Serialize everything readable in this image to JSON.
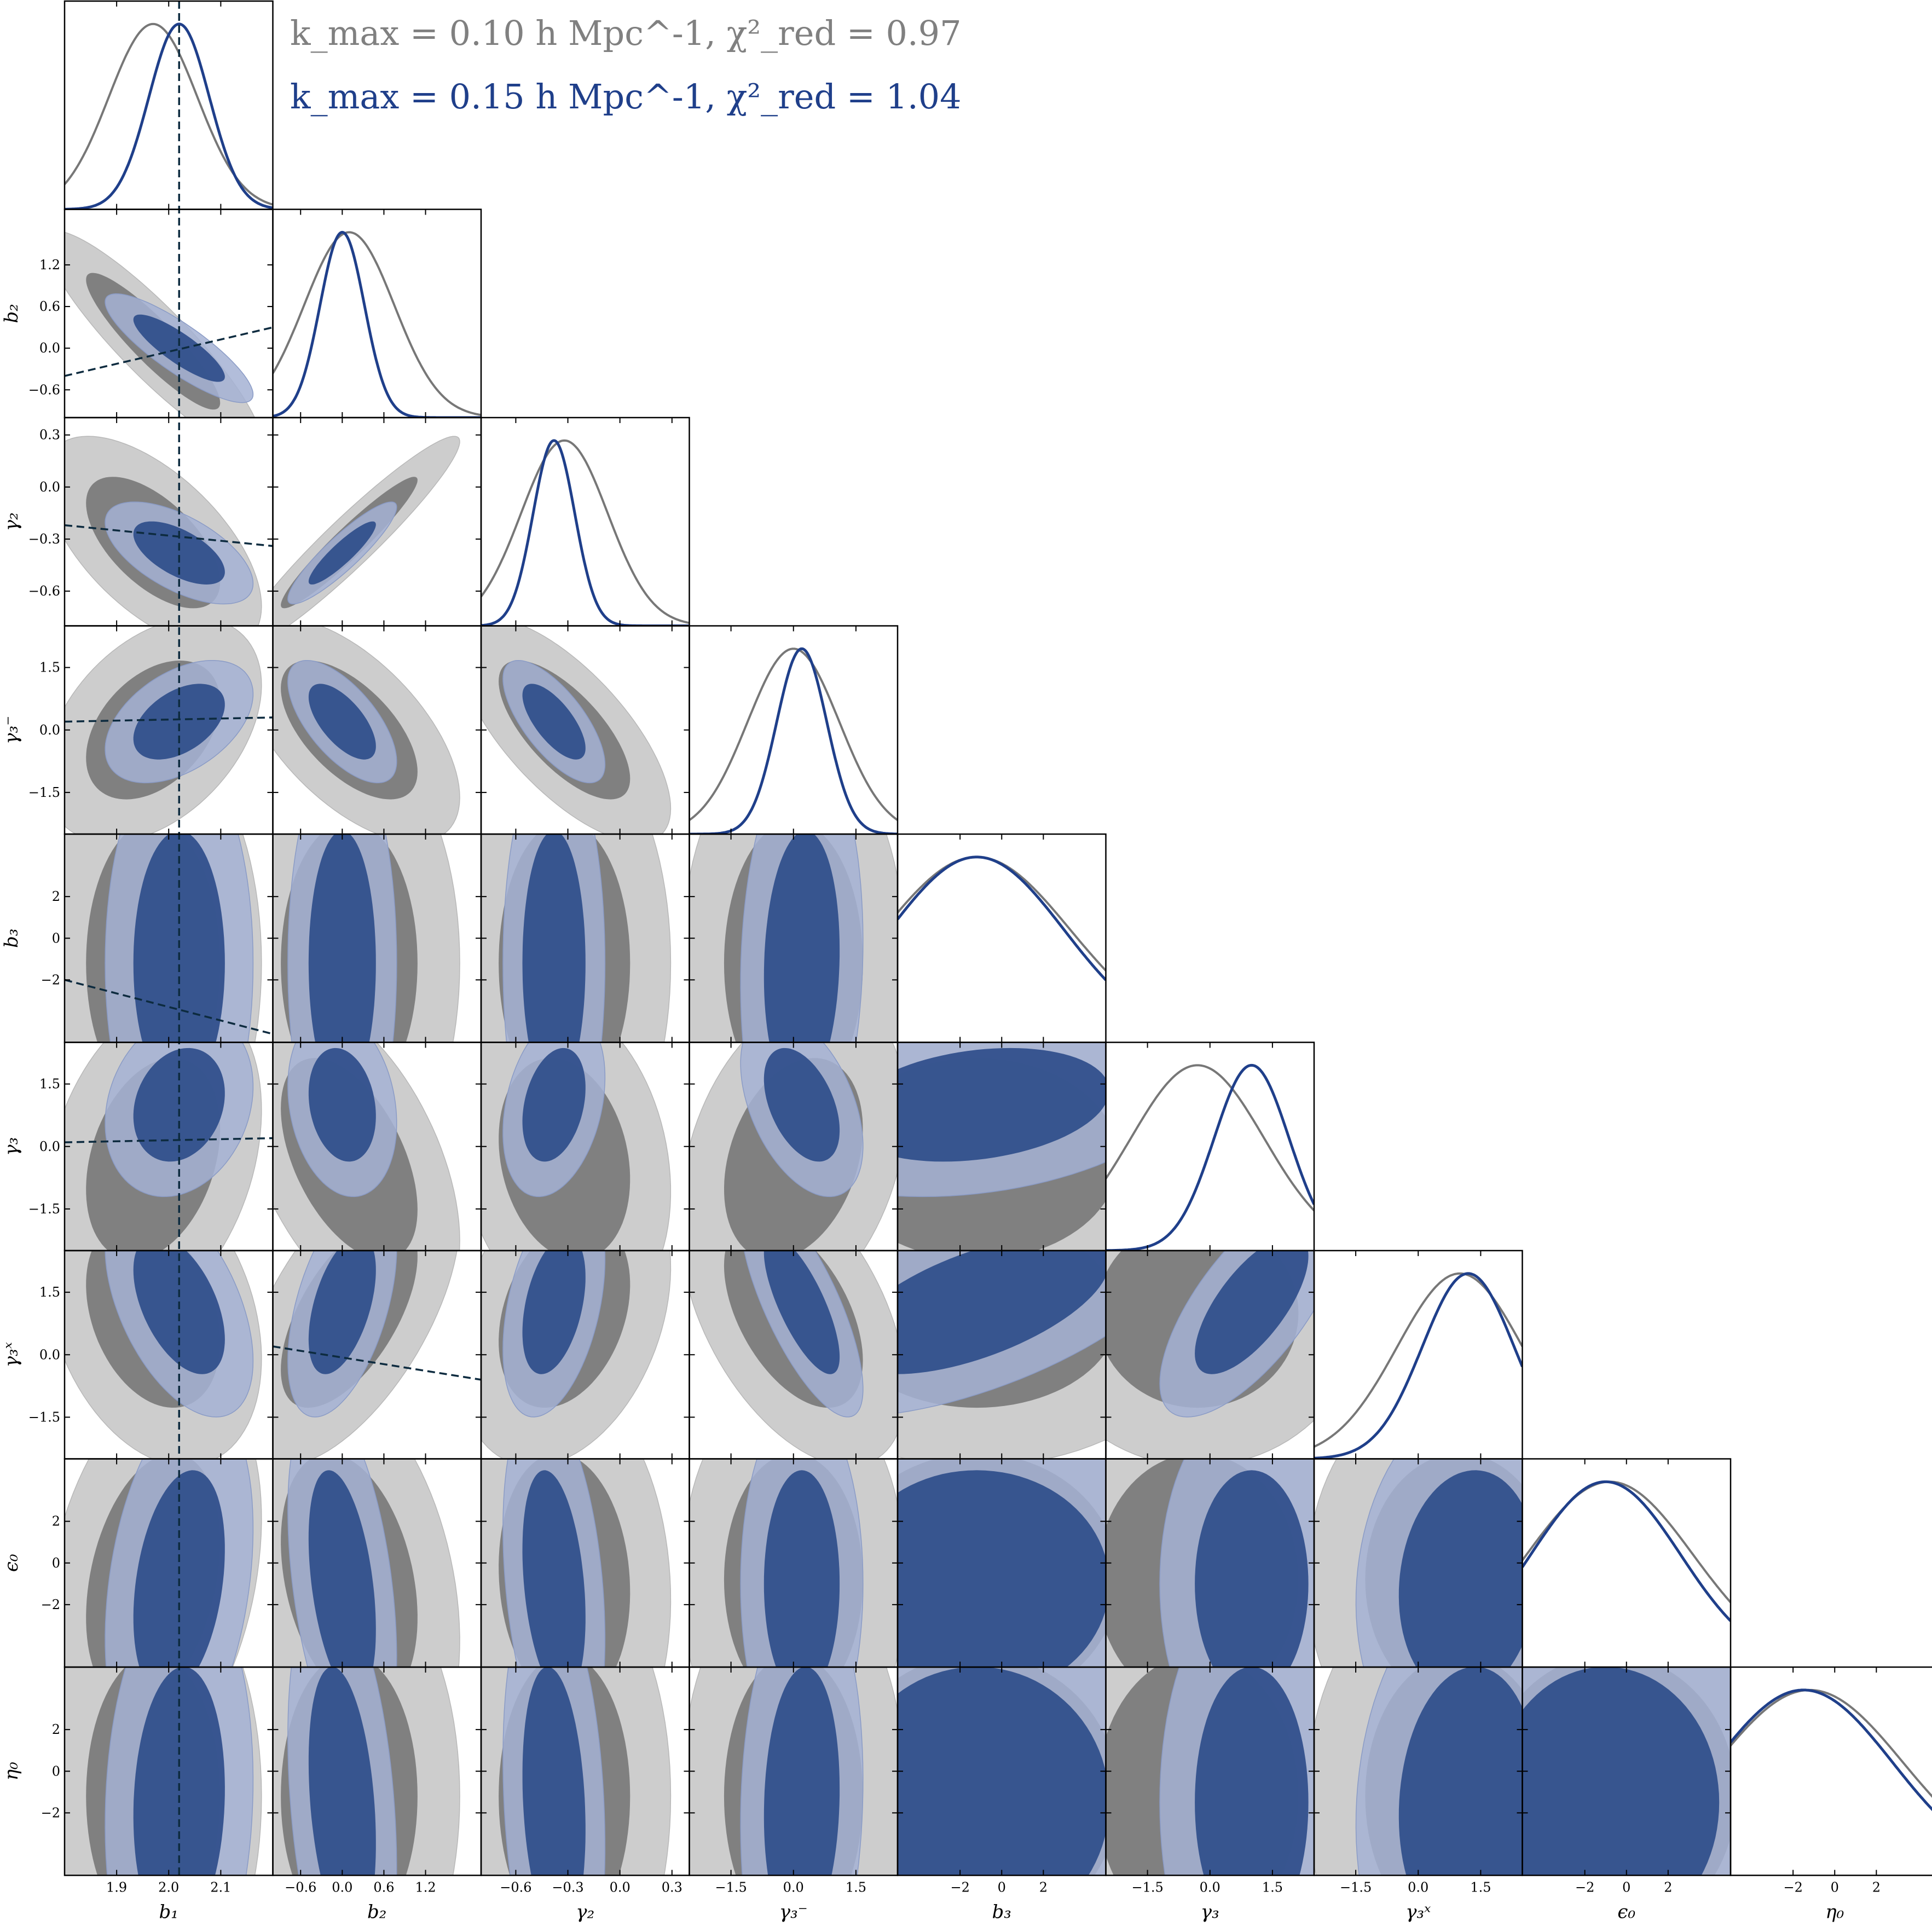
{
  "chart_data": {
    "type": "corner",
    "legend": [
      {
        "label": "k_max = 0.10 h Mpc^-1, χ²_red = 0.97",
        "color": "#808080"
      },
      {
        "label": "k_max = 0.15 h Mpc^-1, χ²_red = 1.04",
        "color": "#1f3f8a"
      }
    ],
    "parameters": [
      {
        "name": "b1",
        "label": "b₁",
        "range": [
          1.8,
          2.2
        ],
        "ticks": [
          1.9,
          2.0,
          2.1
        ],
        "tick_labels": [
          "1.9",
          "2.0",
          "2.1"
        ],
        "mean": [
          1.97,
          2.02
        ],
        "sd": [
          0.085,
          0.058
        ],
        "truth": 2.02
      },
      {
        "name": "b2",
        "label": "b₂",
        "range": [
          -1.0,
          2.0
        ],
        "ticks": [
          -0.6,
          0.0,
          0.6,
          1.2
        ],
        "tick_labels": [
          "−0.6",
          "0.0",
          "0.6",
          "1.2"
        ],
        "mean": [
          0.1,
          0.0
        ],
        "sd": [
          0.65,
          0.32
        ]
      },
      {
        "name": "gamma2",
        "label": "γ₂",
        "range": [
          -0.8,
          0.4
        ],
        "ticks": [
          -0.6,
          -0.3,
          0.0,
          0.3
        ],
        "tick_labels": [
          "−0.6",
          "−0.3",
          "0.0",
          "0.3"
        ],
        "mean": [
          -0.32,
          -0.38
        ],
        "sd": [
          0.25,
          0.12
        ]
      },
      {
        "name": "gamma3m",
        "label": "γ₃⁻",
        "range": [
          -2.5,
          2.5
        ],
        "ticks": [
          -1.5,
          0.0,
          1.5
        ],
        "tick_labels": [
          "−1.5",
          "0.0",
          "1.5"
        ],
        "mean": [
          0.0,
          0.2
        ],
        "sd": [
          1.1,
          0.6
        ]
      },
      {
        "name": "b3",
        "label": "b₃",
        "range": [
          -5.0,
          5.0
        ],
        "ticks": [
          -2,
          0,
          2
        ],
        "tick_labels": [
          "−2",
          "0",
          "2"
        ],
        "mean": [
          -1.2,
          -1.2
        ],
        "sd": [
          4.5,
          4.2
        ]
      },
      {
        "name": "gamma3",
        "label": "γ₃",
        "range": [
          -2.5,
          2.5
        ],
        "ticks": [
          -1.5,
          0.0,
          1.5
        ],
        "tick_labels": [
          "−1.5",
          "0.0",
          "1.5"
        ],
        "mean": [
          -0.3,
          1.0
        ],
        "sd": [
          1.6,
          0.9
        ]
      },
      {
        "name": "gamma3x",
        "label": "γ₃ˣ",
        "range": [
          -2.5,
          2.5
        ],
        "ticks": [
          -1.5,
          0.0,
          1.5
        ],
        "tick_labels": [
          "−1.5",
          "0.0",
          "1.5"
        ],
        "mean": [
          1.0,
          1.2
        ],
        "sd": [
          1.5,
          1.1
        ]
      },
      {
        "name": "epsilon0",
        "label": "ϵ₀",
        "range": [
          -5.0,
          5.0
        ],
        "ticks": [
          -2,
          0,
          2
        ],
        "tick_labels": [
          "−2",
          "0",
          "2"
        ],
        "mean": [
          -0.8,
          -1.0
        ],
        "sd": [
          4.0,
          3.6
        ]
      },
      {
        "name": "eta0",
        "label": "η₀",
        "range": [
          -5.0,
          5.0
        ],
        "ticks": [
          -2,
          0,
          2
        ],
        "tick_labels": [
          "−2",
          "0",
          "2"
        ],
        "mean": [
          -1.2,
          -1.5
        ],
        "sd": [
          4.5,
          4.3
        ]
      }
    ],
    "correlations": {
      "grey": [
        [
          1,
          -0.9,
          -0.6,
          0.4,
          0.0,
          0.3,
          -0.3,
          0.3,
          0.0
        ],
        [
          -0.9,
          1,
          0.95,
          -0.6,
          0.0,
          -0.5,
          0.6,
          -0.3,
          0.0
        ],
        [
          -0.6,
          0.95,
          1,
          -0.7,
          0.0,
          -0.2,
          0.3,
          -0.1,
          0.0
        ],
        [
          0.4,
          -0.6,
          -0.7,
          1,
          0.0,
          0.3,
          -0.5,
          0.0,
          0.0
        ],
        [
          0.0,
          0.0,
          0.0,
          0.0,
          1,
          0.0,
          0.0,
          0.0,
          0.0
        ],
        [
          0.3,
          -0.5,
          -0.2,
          0.3,
          0.0,
          1,
          0.0,
          0.0,
          0.0
        ],
        [
          -0.3,
          0.6,
          0.3,
          -0.5,
          0.0,
          0.0,
          1,
          0.0,
          0.0
        ],
        [
          0.3,
          -0.3,
          -0.1,
          0.0,
          0.0,
          0.0,
          0.0,
          1,
          0.0
        ],
        [
          0.0,
          0.0,
          0.0,
          0.0,
          0.0,
          0.0,
          0.0,
          0.0,
          1
        ]
      ],
      "blue": [
        [
          1,
          -0.85,
          -0.6,
          0.45,
          0.0,
          0.2,
          -0.5,
          0.3,
          0.1
        ],
        [
          -0.85,
          1,
          0.9,
          -0.65,
          0.0,
          -0.2,
          0.5,
          -0.4,
          -0.3
        ],
        [
          -0.6,
          0.9,
          1,
          -0.7,
          0.0,
          0.3,
          0.4,
          -0.3,
          -0.2
        ],
        [
          0.45,
          -0.65,
          -0.7,
          1,
          0.1,
          -0.45,
          -0.75,
          0.0,
          0.1
        ],
        [
          0.0,
          0.0,
          0.0,
          0.1,
          1,
          0.25,
          0.6,
          0.0,
          0.0
        ],
        [
          0.2,
          -0.2,
          0.3,
          -0.45,
          0.25,
          1,
          0.7,
          0.0,
          0.0
        ],
        [
          -0.5,
          0.5,
          0.4,
          -0.75,
          0.6,
          0.7,
          1,
          0.1,
          0.1
        ],
        [
          0.3,
          -0.4,
          -0.3,
          0.0,
          0.0,
          0.0,
          0.1,
          1,
          0.0
        ],
        [
          0.1,
          -0.3,
          -0.2,
          0.1,
          0.0,
          0.0,
          0.1,
          0.0,
          1
        ]
      ]
    },
    "truth_lines": [
      {
        "col": 0,
        "row": 1,
        "x": [
          1.8,
          2.2
        ],
        "y": [
          -0.4,
          0.3
        ]
      },
      {
        "col": 0,
        "row": 2,
        "x": [
          1.8,
          2.2
        ],
        "y": [
          -0.22,
          -0.34
        ]
      },
      {
        "col": 0,
        "row": 3,
        "x": [
          1.8,
          2.2
        ],
        "y": [
          0.2,
          0.3
        ]
      },
      {
        "col": 0,
        "row": 4,
        "x": [
          1.8,
          2.2
        ],
        "y": [
          -2.0,
          -4.6
        ]
      },
      {
        "col": 0,
        "row": 5,
        "x": [
          1.8,
          2.2
        ],
        "y": [
          0.1,
          0.2
        ]
      },
      {
        "col": 1,
        "row": 6,
        "x": [
          -1.0,
          2.0
        ],
        "y": [
          0.2,
          -0.6
        ]
      }
    ],
    "colors": {
      "grey_outer": "#cdcdcd",
      "grey_inner": "#808080",
      "blue_outer": "#a4b2d4",
      "blue_inner": "#32508c",
      "grey_line": "#777777",
      "blue_line": "#1f3f8a",
      "truth_line": "#0d2b3f"
    }
  }
}
